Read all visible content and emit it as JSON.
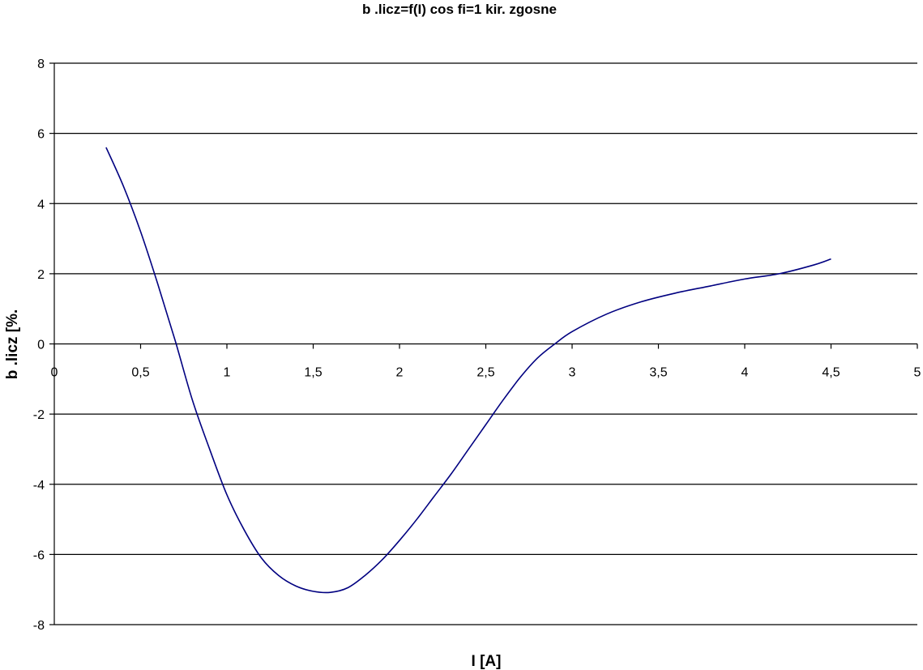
{
  "chart_data": {
    "type": "line",
    "title": "b .licz=f(I)  cos fi=1 kir. zgosne",
    "xlabel": "I [A]",
    "ylabel": "b  .licz [%.",
    "xlim": [
      0,
      5
    ],
    "ylim": [
      -8,
      8
    ],
    "x_ticks": [
      "0",
      "0,5",
      "1",
      "1,5",
      "2",
      "2,5",
      "3",
      "3,5",
      "4",
      "4,5",
      "5"
    ],
    "y_ticks": [
      "8",
      "6",
      "4",
      "2",
      "0",
      "-2",
      "-4",
      "-6",
      "-8"
    ],
    "x_tick_values": [
      0,
      0.5,
      1,
      1.5,
      2,
      2.5,
      3,
      3.5,
      4,
      4.5,
      5
    ],
    "y_tick_values": [
      8,
      6,
      4,
      2,
      0,
      -2,
      -4,
      -6,
      -8
    ],
    "grid": "horizontal",
    "legend": "none",
    "series": [
      {
        "color": "#000080",
        "x": [
          0.3,
          0.4,
          0.5,
          0.6,
          0.7,
          0.8,
          0.9,
          1.0,
          1.1,
          1.2,
          1.3,
          1.4,
          1.5,
          1.6,
          1.7,
          1.8,
          1.9,
          2.0,
          2.1,
          2.2,
          2.3,
          2.4,
          2.5,
          2.6,
          2.7,
          2.8,
          2.9,
          3.0,
          3.2,
          3.4,
          3.6,
          3.8,
          4.0,
          4.2,
          4.4,
          4.5
        ],
        "y": [
          5.6,
          4.5,
          3.2,
          1.7,
          0.1,
          -1.6,
          -3.0,
          -4.3,
          -5.3,
          -6.1,
          -6.6,
          -6.9,
          -7.05,
          -7.08,
          -6.95,
          -6.6,
          -6.15,
          -5.6,
          -5.0,
          -4.35,
          -3.7,
          -3.0,
          -2.3,
          -1.6,
          -0.95,
          -0.4,
          0.0,
          0.35,
          0.85,
          1.2,
          1.45,
          1.65,
          1.85,
          2.0,
          2.25,
          2.42
        ]
      }
    ]
  }
}
